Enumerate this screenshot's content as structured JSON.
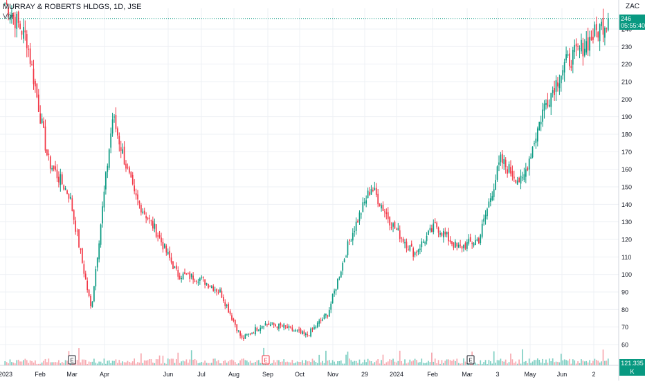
{
  "header": {
    "symbol_title": "MURRAY & ROBERTS HLDGS, 1D, JSE",
    "volume_label": "Vol",
    "currency": "ZAC"
  },
  "price_tag": {
    "last_price": "246",
    "countdown": "05:55:40"
  },
  "volume_tag": {
    "value": "121.335 K"
  },
  "events": [
    "E",
    "E",
    "E"
  ],
  "colors": {
    "up": "#089981",
    "down": "#f23645",
    "up_volume": "#7fcfc3",
    "down_volume": "#f7a9b0",
    "grid": "#eef0f4",
    "axis_text": "#131722"
  },
  "chart_data": {
    "type": "candlestick",
    "title": "MURRAY & ROBERTS HLDGS, 1D, JSE",
    "y_axis": {
      "unit": "ZAC",
      "ticks": [
        60,
        70,
        80,
        90,
        100,
        110,
        120,
        130,
        140,
        150,
        160,
        170,
        180,
        190,
        200,
        210,
        220,
        230,
        240
      ],
      "range": [
        55,
        250
      ]
    },
    "x_axis": {
      "tick_labels": [
        "2023",
        "Feb",
        "Mar",
        "Apr",
        "Jun",
        "Jul",
        "Aug",
        "Sep",
        "Oct",
        "Nov",
        "29",
        "2024",
        "Feb",
        "Mar",
        "3",
        "May",
        "Jun",
        "2"
      ]
    },
    "approx_close_path": [
      {
        "period": "Jan 2023",
        "close": 255
      },
      {
        "period": "late Feb 2023",
        "close": 235
      },
      {
        "period": "early Mar 2023",
        "close": 165
      },
      {
        "period": "mid Mar 2023",
        "close": 145
      },
      {
        "period": "late Mar 2023",
        "close": 80
      },
      {
        "period": "early Apr 2023",
        "close": 190
      },
      {
        "period": "mid Apr 2023",
        "close": 145
      },
      {
        "period": "May 2023",
        "close": 125
      },
      {
        "period": "Jun 2023",
        "close": 100
      },
      {
        "period": "Jul 2023",
        "close": 98
      },
      {
        "period": "Aug 2023",
        "close": 90
      },
      {
        "period": "Sep 2023",
        "close": 63
      },
      {
        "period": "Oct 2023",
        "close": 72
      },
      {
        "period": "Nov 2023",
        "close": 70
      },
      {
        "period": "late Nov 2023",
        "close": 65
      },
      {
        "period": "early Dec 2023",
        "close": 78
      },
      {
        "period": "mid Dec 2023",
        "close": 120
      },
      {
        "period": "late Dec 2023",
        "close": 150
      },
      {
        "period": "Jan 2024",
        "close": 128
      },
      {
        "period": "Feb 2024",
        "close": 112
      },
      {
        "period": "Mar 2024",
        "close": 128
      },
      {
        "period": "Apr 2024",
        "close": 115
      },
      {
        "period": "early May 2024",
        "close": 120
      },
      {
        "period": "mid May 2024",
        "close": 165
      },
      {
        "period": "late May 2024",
        "close": 152
      },
      {
        "period": "Jun 2024",
        "close": 195
      },
      {
        "period": "late Jun 2024",
        "close": 220
      },
      {
        "period": "Jul 2024",
        "close": 232
      },
      {
        "period": "last",
        "close": 246
      }
    ]
  }
}
